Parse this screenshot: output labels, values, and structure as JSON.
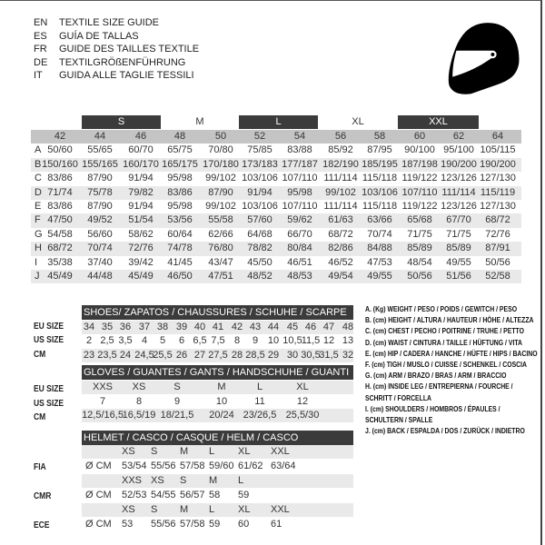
{
  "titles": [
    {
      "code": "EN",
      "text": "TEXTILE SIZE GUIDE"
    },
    {
      "code": "ES",
      "text": "GUÍA DE TALLAS"
    },
    {
      "code": "FR",
      "text": "GUIDE DES TAILLES TEXTILE"
    },
    {
      "code": "DE",
      "text": "TEXTILGRÖßENFÜHRUNG"
    },
    {
      "code": "IT",
      "text": "GUIDA ALLE TAGLIE TESSILI"
    }
  ],
  "icon": "helmet-icon",
  "textile": {
    "size_labels": [
      "S",
      "M",
      "L",
      "XL",
      "XXL"
    ],
    "sizes": [
      "42",
      "44",
      "46",
      "48",
      "50",
      "52",
      "54",
      "56",
      "58",
      "60",
      "62",
      "64"
    ],
    "rows": [
      {
        "letter": "A",
        "values": [
          "50/60",
          "55/65",
          "60/70",
          "65/75",
          "70/80",
          "75/85",
          "83/88",
          "85/92",
          "87/95",
          "90/100",
          "95/100",
          "105/115"
        ]
      },
      {
        "letter": "B",
        "values": [
          "150/160",
          "155/165",
          "160/170",
          "165/175",
          "170/180",
          "173/183",
          "177/187",
          "182/190",
          "185/195",
          "187/198",
          "190/200",
          "190/200"
        ]
      },
      {
        "letter": "C",
        "values": [
          "83/86",
          "87/90",
          "91/94",
          "95/98",
          "99/102",
          "103/106",
          "107/110",
          "111/114",
          "115/118",
          "119/122",
          "123/126",
          "127/130"
        ]
      },
      {
        "letter": "D",
        "values": [
          "71/74",
          "75/78",
          "79/82",
          "83/86",
          "87/90",
          "91/94",
          "95/98",
          "99/102",
          "103/106",
          "107/110",
          "111/114",
          "115/119"
        ]
      },
      {
        "letter": "E",
        "values": [
          "83/86",
          "87/90",
          "91/94",
          "95/98",
          "99/102",
          "103/106",
          "107/110",
          "111/114",
          "115/118",
          "119/122",
          "123/126",
          "127/130"
        ]
      },
      {
        "letter": "F",
        "values": [
          "47/50",
          "49/52",
          "51/54",
          "53/56",
          "55/58",
          "57/60",
          "59/62",
          "61/63",
          "63/66",
          "65/68",
          "67/70",
          "68/72"
        ]
      },
      {
        "letter": "G",
        "values": [
          "54/58",
          "56/60",
          "58/62",
          "60/64",
          "62/66",
          "64/68",
          "66/70",
          "68/72",
          "70/74",
          "71/75",
          "71/75",
          "72/76"
        ]
      },
      {
        "letter": "H",
        "values": [
          "68/72",
          "70/74",
          "72/76",
          "74/78",
          "76/80",
          "78/82",
          "80/84",
          "82/86",
          "84/88",
          "85/89",
          "85/89",
          "87/91"
        ]
      },
      {
        "letter": "I",
        "values": [
          "35/38",
          "37/40",
          "39/42",
          "41/45",
          "43/47",
          "45/50",
          "46/51",
          "46/52",
          "47/53",
          "48/54",
          "49/55",
          "50/56"
        ]
      },
      {
        "letter": "J",
        "values": [
          "45/49",
          "44/48",
          "45/49",
          "46/50",
          "47/51",
          "48/52",
          "48/53",
          "49/54",
          "49/55",
          "50/56",
          "51/56",
          "52/58"
        ]
      }
    ]
  },
  "shoes": {
    "title": "SHOES/ ZAPATOS / CHAUSSURES / SCHUHE / SCARPE",
    "rows": [
      {
        "label": "EU SIZE",
        "values": [
          "34",
          "35",
          "36",
          "37",
          "38",
          "39",
          "40",
          "41",
          "42",
          "43",
          "44",
          "45",
          "46",
          "47",
          "48"
        ]
      },
      {
        "label": "US SIZE",
        "values": [
          "2",
          "2,5",
          "3,5",
          "4",
          "5",
          "6",
          "6,5",
          "7,5",
          "8",
          "9",
          "10",
          "10,5",
          "11,5",
          "12",
          "13"
        ]
      },
      {
        "label": "CM",
        "values": [
          "23",
          "23,5",
          "24",
          "24,5",
          "25,5",
          "26",
          "27",
          "27,5",
          "28",
          "28,5",
          "29",
          "30",
          "30,5",
          "31,5",
          "32"
        ]
      }
    ]
  },
  "gloves": {
    "title": "GLOVES / GUANTES / GANTS / HANDSCHUHE / GUANTI",
    "rows": [
      {
        "label": "EU SIZE",
        "values": [
          "XXS",
          "XS",
          "S",
          "M",
          "L",
          "XL"
        ]
      },
      {
        "label": "US SIZE",
        "values": [
          "7",
          "8",
          "9",
          "10",
          "11",
          "12"
        ]
      },
      {
        "label": "CM",
        "values": [
          "12,5/16,5",
          "16,5/19",
          "18/21,5",
          "20/24",
          "23/26,5",
          "25,5/30"
        ]
      }
    ]
  },
  "helmet": {
    "title": "HELMET / CASCO / CASQUE / HELM / CASCO",
    "unit": "Ø CM",
    "groups": [
      {
        "label": "FIA",
        "sizes": [
          "XS",
          "S",
          "M",
          "L",
          "XL",
          "XXL"
        ],
        "values": [
          "53/54",
          "55/56",
          "57/58",
          "59/60",
          "61/62",
          "63/64"
        ]
      },
      {
        "label": "CMR",
        "sizes": [
          "XXS",
          "XS",
          "S",
          "M",
          "L"
        ],
        "values": [
          "52/53",
          "54/55",
          "56/57",
          "58",
          "59"
        ]
      },
      {
        "label": "ECE",
        "sizes": [
          "XS",
          "S",
          "M",
          "L",
          "XL",
          "XXL"
        ],
        "values": [
          "53",
          "55/56",
          "57/58",
          "59",
          "60",
          "61"
        ]
      }
    ]
  },
  "legend": [
    "A. (Kg) WEIGHT / PESO / POIDS / GEWITCH / PESO",
    "B. (cm) HEIGHT / ALTURA / HAUTEUR / HÖHE / ALTEZZA",
    "C. (cm) CHEST / PECHO / POITRINE / TRUHE / PETTO",
    "D. (cm) WAIST / CINTURA / TAILLE / HÜFTUNG / VITA",
    "E. (cm) HIP / CADERA / HANCHE / HÜFTE / HIPS /  BACINO",
    "F.  (cm) TIGH / MUSLO / CUISSE / SCHENKEL / COSCIA",
    "G. (cm) ARM  / BRAZO / BRAS / ARM / BRACCIO",
    "H. (cm) INSIDE LEG / ENTREPIERNA / FOURCHE /",
    "SCHRITT / FORCELLA",
    "I.  (cm) SHOULDERS / HOMBROS / ÉPAULES /",
    "SCHULTERN / SPALLE",
    "J. (cm) BACK / ESPALDA / DOS / ZURÜCK / INDIETRO"
  ]
}
